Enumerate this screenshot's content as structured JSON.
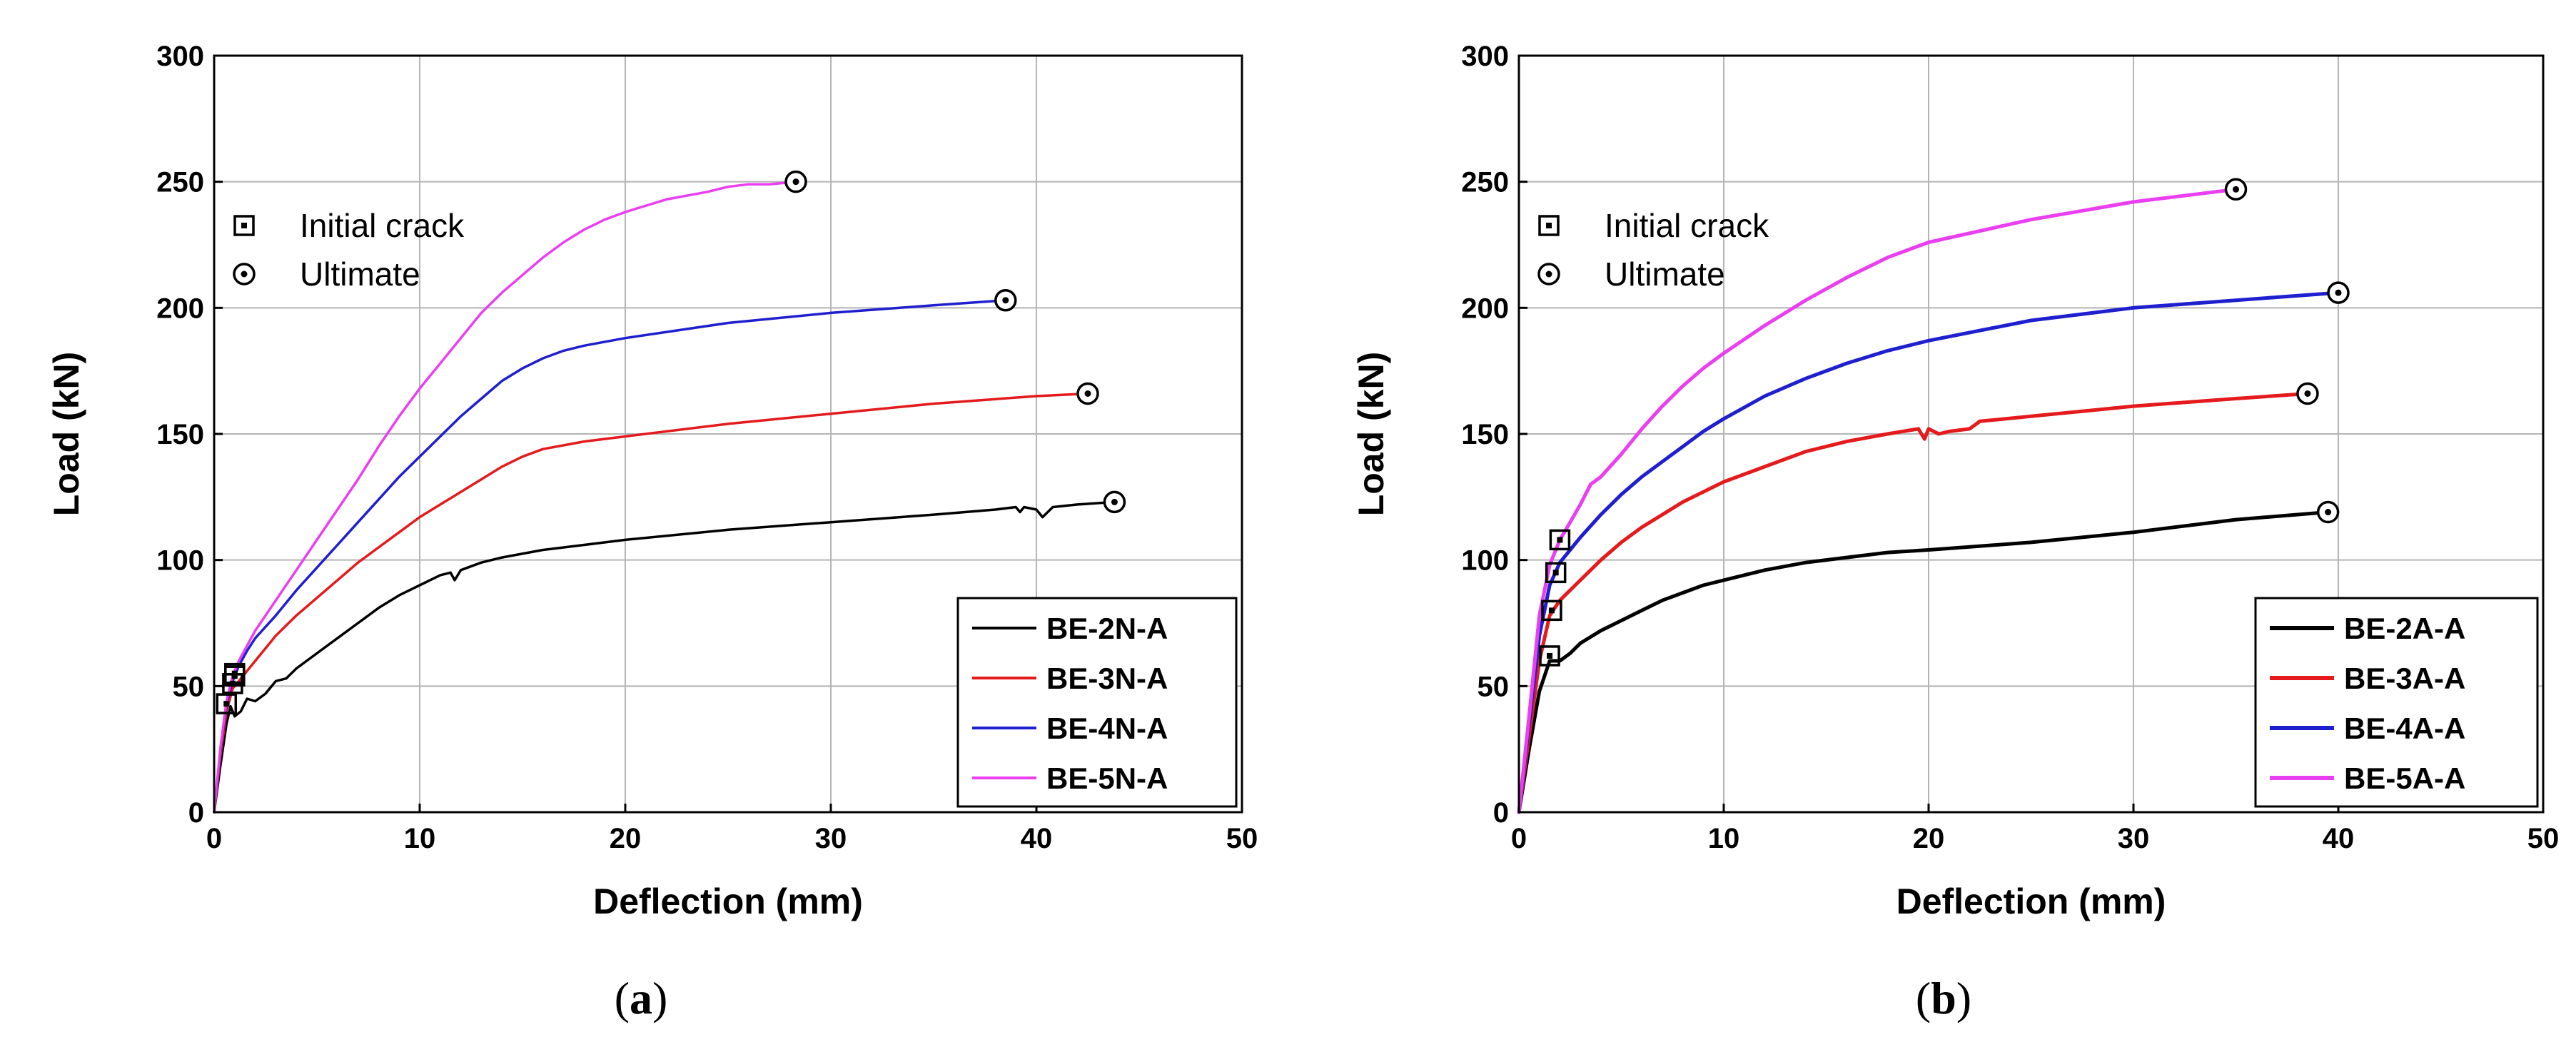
{
  "chart_data": [
    {
      "type": "line",
      "panel": "a",
      "caption_letter": "a",
      "xlabel": "Deflection (mm)",
      "ylabel": "Load (kN)",
      "xlim": [
        0,
        50
      ],
      "ylim": [
        0,
        300
      ],
      "xticks": [
        0,
        10,
        20,
        30,
        40,
        50
      ],
      "yticks": [
        0,
        50,
        100,
        150,
        200,
        250,
        300
      ],
      "grid": true,
      "marker_legend": [
        {
          "label": "Initial crack",
          "symbol": "square"
        },
        {
          "label": "Ultimate",
          "symbol": "circle-dot"
        }
      ],
      "legend_position": "bottom-right",
      "series": [
        {
          "name": "BE-2N-A",
          "color": "#000000",
          "points": [
            [
              0,
              0
            ],
            [
              0.3,
              18
            ],
            [
              0.6,
              35
            ],
            [
              0.8,
              42
            ],
            [
              1.0,
              38
            ],
            [
              1.3,
              40
            ],
            [
              1.6,
              45
            ],
            [
              2,
              44
            ],
            [
              2.5,
              47
            ],
            [
              3,
              52
            ],
            [
              3.5,
              53
            ],
            [
              4,
              57
            ],
            [
              5,
              63
            ],
            [
              6,
              69
            ],
            [
              7,
              75
            ],
            [
              8,
              81
            ],
            [
              9,
              86
            ],
            [
              10,
              90
            ],
            [
              11,
              94
            ],
            [
              11.5,
              95
            ],
            [
              11.7,
              92
            ],
            [
              12,
              96
            ],
            [
              13,
              99
            ],
            [
              14,
              101
            ],
            [
              16,
              104
            ],
            [
              18,
              106
            ],
            [
              20,
              108
            ],
            [
              25,
              112
            ],
            [
              30,
              115
            ],
            [
              35,
              118
            ],
            [
              38,
              120
            ],
            [
              39,
              121
            ],
            [
              39.2,
              119
            ],
            [
              39.4,
              121
            ],
            [
              40,
              120
            ],
            [
              40.3,
              117
            ],
            [
              40.8,
              121
            ],
            [
              42,
              122
            ],
            [
              43.8,
              123
            ]
          ],
          "initial_crack": [
            0.6,
            43
          ],
          "ultimate": [
            43.8,
            123
          ]
        },
        {
          "name": "BE-3N-A",
          "color": "#e41a1c",
          "points": [
            [
              0,
              0
            ],
            [
              0.3,
              22
            ],
            [
              0.6,
              40
            ],
            [
              0.9,
              49
            ],
            [
              1.2,
              52
            ],
            [
              1.6,
              56
            ],
            [
              2,
              60
            ],
            [
              3,
              70
            ],
            [
              4,
              78
            ],
            [
              5,
              85
            ],
            [
              6,
              92
            ],
            [
              7,
              99
            ],
            [
              8,
              105
            ],
            [
              9,
              111
            ],
            [
              10,
              117
            ],
            [
              11,
              122
            ],
            [
              12,
              127
            ],
            [
              13,
              132
            ],
            [
              14,
              137
            ],
            [
              15,
              141
            ],
            [
              16,
              144
            ],
            [
              18,
              147
            ],
            [
              20,
              149
            ],
            [
              25,
              154
            ],
            [
              30,
              158
            ],
            [
              35,
              162
            ],
            [
              40,
              165
            ],
            [
              42.5,
              166
            ]
          ],
          "initial_crack": [
            0.9,
            51
          ],
          "ultimate": [
            42.5,
            166
          ]
        },
        {
          "name": "BE-4N-A",
          "color": "#1f1fcf",
          "points": [
            [
              0,
              0
            ],
            [
              0.3,
              24
            ],
            [
              0.6,
              43
            ],
            [
              0.9,
              52
            ],
            [
              1.2,
              58
            ],
            [
              1.6,
              64
            ],
            [
              2,
              69
            ],
            [
              3,
              78
            ],
            [
              4,
              88
            ],
            [
              5,
              97
            ],
            [
              6,
              106
            ],
            [
              7,
              115
            ],
            [
              8,
              124
            ],
            [
              9,
              133
            ],
            [
              10,
              141
            ],
            [
              11,
              149
            ],
            [
              12,
              157
            ],
            [
              13,
              164
            ],
            [
              14,
              171
            ],
            [
              15,
              176
            ],
            [
              16,
              180
            ],
            [
              17,
              183
            ],
            [
              18,
              185
            ],
            [
              20,
              188
            ],
            [
              25,
              194
            ],
            [
              30,
              198
            ],
            [
              35,
              201
            ],
            [
              38.5,
              203
            ]
          ],
          "initial_crack": [
            1.0,
            54
          ],
          "ultimate": [
            38.5,
            203
          ]
        },
        {
          "name": "BE-5N-A",
          "color": "#ea3ff0",
          "points": [
            [
              0,
              0
            ],
            [
              0.3,
              25
            ],
            [
              0.6,
              44
            ],
            [
              0.9,
              54
            ],
            [
              1.2,
              60
            ],
            [
              1.6,
              66
            ],
            [
              2,
              72
            ],
            [
              3,
              84
            ],
            [
              4,
              96
            ],
            [
              5,
              108
            ],
            [
              6,
              120
            ],
            [
              7,
              132
            ],
            [
              8,
              145
            ],
            [
              9,
              157
            ],
            [
              10,
              168
            ],
            [
              11,
              178
            ],
            [
              12,
              188
            ],
            [
              13,
              198
            ],
            [
              14,
              206
            ],
            [
              15,
              213
            ],
            [
              16,
              220
            ],
            [
              17,
              226
            ],
            [
              18,
              231
            ],
            [
              19,
              235
            ],
            [
              20,
              238
            ],
            [
              22,
              243
            ],
            [
              24,
              246
            ],
            [
              25,
              248
            ],
            [
              26,
              249
            ],
            [
              27,
              249
            ],
            [
              28.3,
              250
            ]
          ],
          "initial_crack": [
            1.0,
            55
          ],
          "ultimate": [
            28.3,
            250
          ]
        }
      ]
    },
    {
      "type": "line",
      "panel": "b",
      "caption_letter": "b",
      "xlabel": "Deflection (mm)",
      "ylabel": "Load (kN)",
      "xlim": [
        0,
        50
      ],
      "ylim": [
        0,
        300
      ],
      "xticks": [
        0,
        10,
        20,
        30,
        40,
        50
      ],
      "yticks": [
        0,
        50,
        100,
        150,
        200,
        250,
        300
      ],
      "grid": true,
      "marker_legend": [
        {
          "label": "Initial crack",
          "symbol": "square"
        },
        {
          "label": "Ultimate",
          "symbol": "circle-dot"
        }
      ],
      "legend_position": "bottom-right",
      "series": [
        {
          "name": "BE-2A-A",
          "color": "#000000",
          "points": [
            [
              0,
              0
            ],
            [
              0.5,
              25
            ],
            [
              1.0,
              48
            ],
            [
              1.5,
              60
            ],
            [
              2,
              60
            ],
            [
              2.5,
              63
            ],
            [
              3,
              67
            ],
            [
              4,
              72
            ],
            [
              5,
              76
            ],
            [
              6,
              80
            ],
            [
              7,
              84
            ],
            [
              8,
              87
            ],
            [
              9,
              90
            ],
            [
              10,
              92
            ],
            [
              12,
              96
            ],
            [
              14,
              99
            ],
            [
              16,
              101
            ],
            [
              18,
              103
            ],
            [
              20,
              104
            ],
            [
              25,
              107
            ],
            [
              30,
              111
            ],
            [
              35,
              116
            ],
            [
              39.5,
              119
            ]
          ],
          "initial_crack": [
            1.5,
            62
          ],
          "ultimate": [
            39.5,
            119
          ]
        },
        {
          "name": "BE-3A-A",
          "color": "#e41a1c",
          "points": [
            [
              0,
              0
            ],
            [
              0.5,
              30
            ],
            [
              1.0,
              60
            ],
            [
              1.5,
              78
            ],
            [
              2,
              84
            ],
            [
              3,
              92
            ],
            [
              4,
              100
            ],
            [
              5,
              107
            ],
            [
              6,
              113
            ],
            [
              7,
              118
            ],
            [
              8,
              123
            ],
            [
              9,
              127
            ],
            [
              10,
              131
            ],
            [
              12,
              137
            ],
            [
              14,
              143
            ],
            [
              16,
              147
            ],
            [
              18,
              150
            ],
            [
              19.5,
              152
            ],
            [
              19.8,
              148
            ],
            [
              20,
              152
            ],
            [
              20.5,
              150
            ],
            [
              21,
              151
            ],
            [
              22,
              152
            ],
            [
              22.5,
              155
            ],
            [
              25,
              157
            ],
            [
              30,
              161
            ],
            [
              35,
              164
            ],
            [
              38.5,
              166
            ]
          ],
          "initial_crack": [
            1.6,
            80
          ],
          "ultimate": [
            38.5,
            166
          ]
        },
        {
          "name": "BE-4A-A",
          "color": "#1f1fcf",
          "points": [
            [
              0,
              0
            ],
            [
              0.5,
              35
            ],
            [
              1.0,
              70
            ],
            [
              1.5,
              90
            ],
            [
              2,
              99
            ],
            [
              3,
              109
            ],
            [
              4,
              118
            ],
            [
              5,
              126
            ],
            [
              6,
              133
            ],
            [
              7,
              139
            ],
            [
              8,
              145
            ],
            [
              9,
              151
            ],
            [
              10,
              156
            ],
            [
              12,
              165
            ],
            [
              14,
              172
            ],
            [
              16,
              178
            ],
            [
              18,
              183
            ],
            [
              20,
              187
            ],
            [
              25,
              195
            ],
            [
              30,
              200
            ],
            [
              35,
              203
            ],
            [
              40,
              206
            ]
          ],
          "initial_crack": [
            1.8,
            95
          ],
          "ultimate": [
            40,
            206
          ]
        },
        {
          "name": "BE-5A-A",
          "color": "#ea3ff0",
          "points": [
            [
              0,
              0
            ],
            [
              0.5,
              38
            ],
            [
              1.0,
              78
            ],
            [
              1.5,
              98
            ],
            [
              2,
              108
            ],
            [
              2.5,
              115
            ],
            [
              3,
              122
            ],
            [
              3.5,
              130
            ],
            [
              4,
              133
            ],
            [
              5,
              142
            ],
            [
              6,
              152
            ],
            [
              7,
              161
            ],
            [
              8,
              169
            ],
            [
              9,
              176
            ],
            [
              10,
              182
            ],
            [
              12,
              193
            ],
            [
              14,
              203
            ],
            [
              16,
              212
            ],
            [
              18,
              220
            ],
            [
              20,
              226
            ],
            [
              25,
              235
            ],
            [
              30,
              242
            ],
            [
              35,
              247
            ]
          ],
          "initial_crack": [
            2.0,
            108
          ],
          "ultimate": [
            35,
            247
          ]
        }
      ]
    }
  ]
}
